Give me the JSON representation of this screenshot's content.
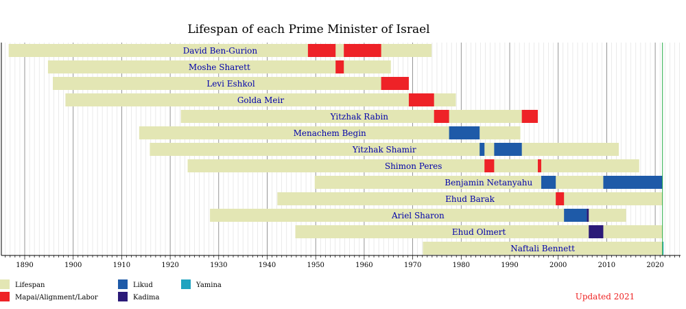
{
  "chart_data": {
    "type": "bar",
    "title": "Lifespan of each Prime Minister of Israel",
    "note": "Updated 2021",
    "xlim": [
      1886,
      2026
    ],
    "x_ticks": [
      1890,
      1900,
      1910,
      1920,
      1930,
      1940,
      1950,
      1960,
      1970,
      1980,
      1990,
      2000,
      2010,
      2020
    ],
    "current_year": 2021.5,
    "legend": [
      {
        "key": "lifespan",
        "label": "Lifespan",
        "color": "#e3e6b4"
      },
      {
        "key": "labor",
        "label": "Mapai/Alignment/Labor",
        "color": "#ee2227"
      },
      {
        "key": "likud",
        "label": "Likud",
        "color": "#1e5aa8"
      },
      {
        "key": "kadima",
        "label": "Kadima",
        "color": "#2b1a78"
      },
      {
        "key": "yamina",
        "label": "Yamina",
        "color": "#1fa3c0"
      }
    ],
    "people": [
      {
        "name": "David Ben-Gurion",
        "born": 1886.7,
        "died": 1973.9,
        "terms": [
          {
            "start": 1948.4,
            "end": 1954.1,
            "party": "labor"
          },
          {
            "start": 1955.8,
            "end": 1963.5,
            "party": "labor"
          }
        ]
      },
      {
        "name": "Moshe Sharett",
        "born": 1894.8,
        "died": 1965.5,
        "terms": [
          {
            "start": 1954.1,
            "end": 1955.8,
            "party": "labor"
          }
        ]
      },
      {
        "name": "Levi Eshkol",
        "born": 1895.8,
        "died": 1969.2,
        "terms": [
          {
            "start": 1963.5,
            "end": 1969.2,
            "party": "labor"
          }
        ]
      },
      {
        "name": "Golda Meir",
        "born": 1898.4,
        "died": 1978.9,
        "terms": [
          {
            "start": 1969.2,
            "end": 1974.4,
            "party": "labor"
          }
        ]
      },
      {
        "name": "Yitzhak Rabin",
        "born": 1922.2,
        "died": 1995.8,
        "terms": [
          {
            "start": 1974.4,
            "end": 1977.5,
            "party": "labor"
          },
          {
            "start": 1992.5,
            "end": 1995.8,
            "party": "labor"
          }
        ]
      },
      {
        "name": "Menachem Begin",
        "born": 1913.6,
        "died": 1992.2,
        "terms": [
          {
            "start": 1977.5,
            "end": 1983.8,
            "party": "likud"
          }
        ]
      },
      {
        "name": "Yitzhak Shamir",
        "born": 1915.8,
        "died": 2012.5,
        "terms": [
          {
            "start": 1983.8,
            "end": 1984.8,
            "party": "likud"
          },
          {
            "start": 1986.8,
            "end": 1992.5,
            "party": "likud"
          }
        ]
      },
      {
        "name": "Shimon Peres",
        "born": 1923.6,
        "died": 2016.7,
        "terms": [
          {
            "start": 1984.8,
            "end": 1986.8,
            "party": "labor"
          },
          {
            "start": 1995.8,
            "end": 1996.5,
            "party": "labor"
          }
        ]
      },
      {
        "name": "Benjamin Netanyahu",
        "born": 1949.8,
        "died": null,
        "terms": [
          {
            "start": 1996.5,
            "end": 1999.5,
            "party": "likud"
          },
          {
            "start": 2009.3,
            "end": 2021.5,
            "party": "likud"
          }
        ]
      },
      {
        "name": "Ehud Barak",
        "born": 1942.1,
        "died": null,
        "terms": [
          {
            "start": 1999.5,
            "end": 2001.2,
            "party": "labor"
          }
        ]
      },
      {
        "name": "Ariel Sharon",
        "born": 1928.2,
        "died": 2014.0,
        "terms": [
          {
            "start": 2001.2,
            "end": 2005.9,
            "party": "likud"
          },
          {
            "start": 2005.9,
            "end": 2006.3,
            "party": "kadima"
          }
        ]
      },
      {
        "name": "Ehud Olmert",
        "born": 1945.8,
        "died": null,
        "terms": [
          {
            "start": 2006.3,
            "end": 2009.3,
            "party": "kadima"
          }
        ]
      },
      {
        "name": "Naftali Bennett",
        "born": 1972.1,
        "died": null,
        "terms": [
          {
            "start": 2021.5,
            "end": 2021.7,
            "party": "yamina"
          }
        ]
      }
    ]
  }
}
